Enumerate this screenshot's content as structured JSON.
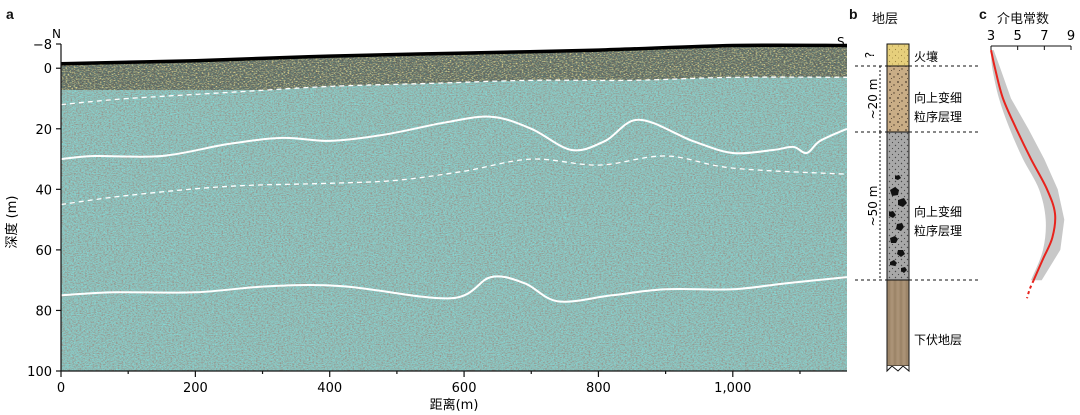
{
  "panel_a": {
    "letter": "a",
    "north_label": "N",
    "south_label": "S",
    "ylabel": "深度 (m)",
    "xlabel": "距离(m)",
    "y_ticks": [
      "−8",
      "0",
      "20",
      "40",
      "60",
      "80",
      "100"
    ],
    "x_ticks": [
      "0",
      "200",
      "400",
      "600",
      "800",
      "1,000"
    ],
    "colors": {
      "background": "#7fe7e6",
      "trace_dark": "#4e4038",
      "trace_yellow": "#d8c24a",
      "horizon": "#ffffff"
    }
  },
  "panel_b": {
    "letter": "b",
    "title": "地层",
    "units": [
      {
        "label": "火壤",
        "thickness_label": "?",
        "pattern": "yellow-sand"
      },
      {
        "label": "向上变细\n粒序层理",
        "thickness_label": "~20 m",
        "pattern": "brown-gravel"
      },
      {
        "label": "向上变细\n粒序层理",
        "thickness_label": "~50 m",
        "pattern": "grey-boulder"
      },
      {
        "label": "下伏地层",
        "thickness_label": "",
        "pattern": "brown-bedrock"
      }
    ],
    "colors": {
      "sand": "#e6cf7c",
      "brown": "#c9ad86",
      "grey": "#a8a8a8",
      "bedrock": "#a58d70"
    }
  },
  "panel_c": {
    "letter": "c",
    "title": "介电常数",
    "x_ticks": [
      "3",
      "5",
      "7",
      "9"
    ],
    "colors": {
      "line": "#e8231d",
      "envelope": "#c8c8c8"
    }
  },
  "chart_data": [
    {
      "type": "heatmap",
      "panel": "a",
      "xlabel": "距离(m)",
      "ylabel": "深度 (m)",
      "xlim": [
        0,
        1170
      ],
      "ylim": [
        -8,
        100
      ],
      "x_ticks": [
        0,
        200,
        400,
        600,
        800,
        1000
      ],
      "y_ticks": [
        -8,
        0,
        20,
        40,
        60,
        80,
        100
      ],
      "grid": false,
      "surface_topography": {
        "x": [
          0,
          200,
          400,
          600,
          800,
          1000,
          1170
        ],
        "depth": [
          -1.5,
          -2.5,
          -4,
          -5,
          -6,
          -7.5,
          -7.5
        ]
      },
      "horizons": [
        {
          "style": "dashed",
          "x": [
            0,
            100,
            250,
            400,
            550,
            700,
            850,
            1000,
            1170
          ],
          "depth": [
            12,
            10,
            8,
            6,
            5,
            4,
            4,
            3,
            3
          ]
        },
        {
          "style": "solid",
          "x": [
            0,
            50,
            150,
            250,
            330,
            400,
            480,
            570,
            640,
            700,
            760,
            810,
            860,
            940,
            1000,
            1060,
            1090,
            1110,
            1130,
            1170
          ],
          "depth": [
            30,
            29,
            29,
            25,
            23,
            24,
            22,
            18,
            16,
            20,
            27,
            24,
            17,
            24,
            28,
            27,
            26,
            28,
            24,
            20
          ]
        },
        {
          "style": "dashed",
          "x": [
            0,
            100,
            250,
            400,
            500,
            600,
            700,
            800,
            900,
            1000,
            1170
          ],
          "depth": [
            45,
            42,
            39,
            38,
            37,
            34,
            30,
            32,
            29,
            33,
            35
          ]
        },
        {
          "style": "solid",
          "x": [
            0,
            80,
            200,
            310,
            420,
            580,
            640,
            690,
            740,
            820,
            900,
            1000,
            1080,
            1170
          ],
          "depth": [
            75,
            74,
            74,
            72,
            72,
            76,
            69,
            71,
            77,
            75,
            73,
            73,
            71,
            69
          ]
        }
      ]
    },
    {
      "type": "line",
      "panel": "c",
      "title": "介电常数",
      "xlim": [
        3,
        9
      ],
      "ylim": [
        -8,
        100
      ],
      "x_ticks": [
        3,
        5,
        7,
        9
      ],
      "series": [
        {
          "style": "solid",
          "x": [
            3.0,
            3.3,
            3.9,
            4.9,
            6.0,
            7.2,
            7.8,
            7.6,
            6.9,
            6.2
          ],
          "y": [
            -6,
            0,
            10,
            20,
            30,
            40,
            48,
            56,
            63,
            70
          ]
        },
        {
          "style": "dashed",
          "x": [
            6.2,
            5.9,
            5.7
          ],
          "y": [
            70,
            73,
            76
          ]
        }
      ],
      "envelope": {
        "y": [
          -6,
          0,
          10,
          20,
          30,
          40,
          50,
          60,
          70
        ],
        "x_low": [
          3.0,
          3.1,
          3.6,
          4.4,
          5.4,
          6.6,
          7.1,
          6.9,
          6.0
        ],
        "x_high": [
          3.2,
          3.7,
          4.5,
          5.8,
          7.0,
          8.0,
          8.5,
          8.2,
          6.8
        ]
      }
    }
  ]
}
